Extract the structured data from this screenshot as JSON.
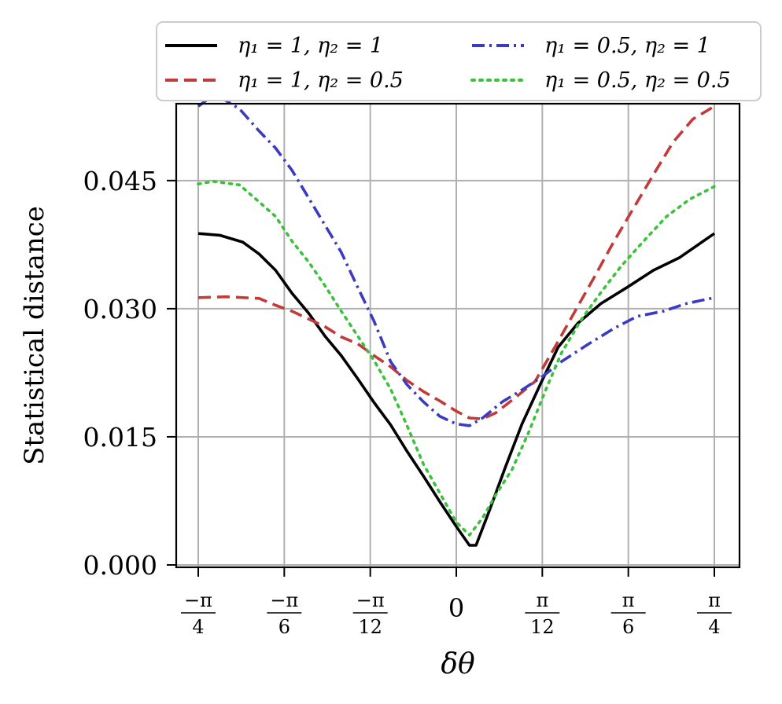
{
  "chart_data": {
    "type": "line",
    "xlabel": "δθ",
    "ylabel": "Statistical distance",
    "xlim": [
      -0.7854,
      0.7854
    ],
    "ylim": [
      0.0,
      0.054
    ],
    "grid": true,
    "legend_position": "top (above plot, two columns)",
    "x_ticks": [
      {
        "value": -0.7854,
        "num": "−π",
        "den": "4"
      },
      {
        "value": -0.5236,
        "num": "−π",
        "den": "6"
      },
      {
        "value": -0.2618,
        "num": "−π",
        "den": "12"
      },
      {
        "value": 0.0,
        "label": "0"
      },
      {
        "value": 0.2618,
        "num": "π",
        "den": "12"
      },
      {
        "value": 0.5236,
        "num": "π",
        "den": "6"
      },
      {
        "value": 0.7854,
        "num": "π",
        "den": "4"
      }
    ],
    "y_ticks": [
      {
        "value": 0.0,
        "label": "0.000"
      },
      {
        "value": 0.015,
        "label": "0.015"
      },
      {
        "value": 0.03,
        "label": "0.030"
      },
      {
        "value": 0.045,
        "label": "0.045"
      }
    ],
    "series": [
      {
        "name": "η₁ = 1, η₂ = 1",
        "color": "#000000",
        "dash": "solid",
        "points": [
          [
            -0.7854,
            0.0388
          ],
          [
            -0.72,
            0.0386
          ],
          [
            -0.65,
            0.0378
          ],
          [
            -0.6,
            0.0364
          ],
          [
            -0.55,
            0.0345
          ],
          [
            -0.5,
            0.0318
          ],
          [
            -0.45,
            0.0295
          ],
          [
            -0.4,
            0.0268
          ],
          [
            -0.35,
            0.0245
          ],
          [
            -0.3,
            0.0218
          ],
          [
            -0.25,
            0.019
          ],
          [
            -0.2,
            0.0164
          ],
          [
            -0.15,
            0.0133
          ],
          [
            -0.1,
            0.0104
          ],
          [
            -0.05,
            0.0074
          ],
          [
            0.0,
            0.0045
          ],
          [
            0.04,
            0.0023
          ],
          [
            0.06,
            0.0023
          ],
          [
            0.1,
            0.0063
          ],
          [
            0.15,
            0.0115
          ],
          [
            0.2,
            0.0165
          ],
          [
            0.26,
            0.0215
          ],
          [
            0.31,
            0.0255
          ],
          [
            0.37,
            0.0283
          ],
          [
            0.44,
            0.0306
          ],
          [
            0.52,
            0.0325
          ],
          [
            0.6,
            0.0345
          ],
          [
            0.68,
            0.036
          ],
          [
            0.7854,
            0.0388
          ]
        ]
      },
      {
        "name": "η₁ = 1, η₂ = 0.5",
        "color": "#c23b3b",
        "dash": "dashed",
        "points": [
          [
            -0.7854,
            0.0313
          ],
          [
            -0.7,
            0.0314
          ],
          [
            -0.6,
            0.0312
          ],
          [
            -0.55,
            0.0304
          ],
          [
            -0.5,
            0.0297
          ],
          [
            -0.45,
            0.0288
          ],
          [
            -0.4,
            0.0279
          ],
          [
            -0.35,
            0.0267
          ],
          [
            -0.3,
            0.0259
          ],
          [
            -0.25,
            0.0245
          ],
          [
            -0.2,
            0.0232
          ],
          [
            -0.15,
            0.0216
          ],
          [
            -0.1,
            0.0203
          ],
          [
            -0.05,
            0.0192
          ],
          [
            0.0,
            0.018
          ],
          [
            0.04,
            0.0172
          ],
          [
            0.08,
            0.0171
          ],
          [
            0.12,
            0.0178
          ],
          [
            0.18,
            0.0196
          ],
          [
            0.24,
            0.0215
          ],
          [
            0.3,
            0.0255
          ],
          [
            0.36,
            0.0296
          ],
          [
            0.42,
            0.0337
          ],
          [
            0.48,
            0.0379
          ],
          [
            0.54,
            0.0418
          ],
          [
            0.6,
            0.0457
          ],
          [
            0.66,
            0.0495
          ],
          [
            0.72,
            0.0522
          ],
          [
            0.7854,
            0.0537
          ]
        ]
      },
      {
        "name": "η₁ = 0.5, η₂ = 1",
        "color": "#3b3bc2",
        "dash": "dashdot",
        "points": [
          [
            -0.7854,
            0.0537
          ],
          [
            -0.75,
            0.0547
          ],
          [
            -0.72,
            0.0548
          ],
          [
            -0.66,
            0.0534
          ],
          [
            -0.6,
            0.0508
          ],
          [
            -0.55,
            0.0488
          ],
          [
            -0.5,
            0.0462
          ],
          [
            -0.45,
            0.043
          ],
          [
            -0.4,
            0.0398
          ],
          [
            -0.35,
            0.0366
          ],
          [
            -0.3,
            0.0325
          ],
          [
            -0.25,
            0.0285
          ],
          [
            -0.2,
            0.0238
          ],
          [
            -0.15,
            0.0211
          ],
          [
            -0.1,
            0.0191
          ],
          [
            -0.05,
            0.0174
          ],
          [
            0.0,
            0.0165
          ],
          [
            0.04,
            0.0163
          ],
          [
            0.08,
            0.0172
          ],
          [
            0.14,
            0.0191
          ],
          [
            0.2,
            0.0205
          ],
          [
            0.26,
            0.022
          ],
          [
            0.32,
            0.0238
          ],
          [
            0.4,
            0.0258
          ],
          [
            0.48,
            0.0277
          ],
          [
            0.55,
            0.0291
          ],
          [
            0.63,
            0.0297
          ],
          [
            0.7,
            0.0306
          ],
          [
            0.7854,
            0.0313
          ]
        ]
      },
      {
        "name": "η₁ = 0.5, η₂ = 0.5",
        "color": "#3bc23b",
        "dash": "dotted",
        "points": [
          [
            -0.7854,
            0.0446
          ],
          [
            -0.74,
            0.0449
          ],
          [
            -0.66,
            0.0445
          ],
          [
            -0.6,
            0.0425
          ],
          [
            -0.55,
            0.0408
          ],
          [
            -0.5,
            0.0379
          ],
          [
            -0.45,
            0.0355
          ],
          [
            -0.4,
            0.0327
          ],
          [
            -0.35,
            0.0297
          ],
          [
            -0.3,
            0.0268
          ],
          [
            -0.25,
            0.0239
          ],
          [
            -0.2,
            0.0206
          ],
          [
            -0.15,
            0.0163
          ],
          [
            -0.1,
            0.0118
          ],
          [
            -0.05,
            0.0084
          ],
          [
            0.0,
            0.005
          ],
          [
            0.04,
            0.0035
          ],
          [
            0.08,
            0.0055
          ],
          [
            0.12,
            0.0082
          ],
          [
            0.17,
            0.0112
          ],
          [
            0.22,
            0.0155
          ],
          [
            0.27,
            0.0203
          ],
          [
            0.32,
            0.0248
          ],
          [
            0.38,
            0.0287
          ],
          [
            0.44,
            0.0319
          ],
          [
            0.5,
            0.0349
          ],
          [
            0.57,
            0.0379
          ],
          [
            0.64,
            0.0408
          ],
          [
            0.71,
            0.0428
          ],
          [
            0.7854,
            0.0443
          ]
        ]
      }
    ]
  }
}
